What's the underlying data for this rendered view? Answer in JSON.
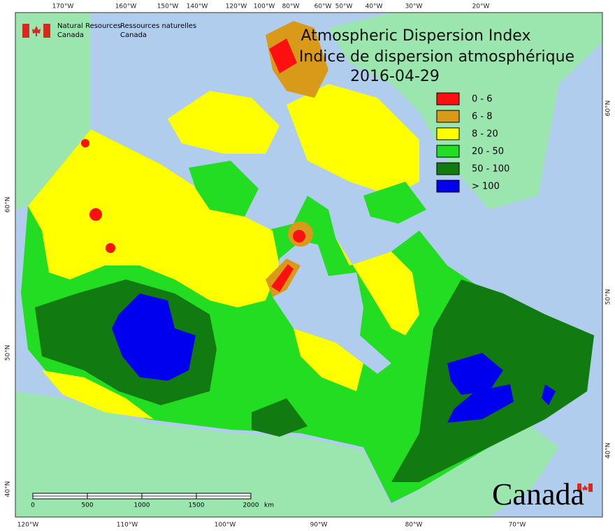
{
  "header": {
    "agency_en": [
      "Natural Resources",
      "Canada"
    ],
    "agency_fr": [
      "Ressources naturelles",
      "Canada"
    ]
  },
  "title": {
    "line1": "Atmospheric Dispersion Index",
    "line2": "Indice de dispersion atmosphérique",
    "date": "2016-04-29"
  },
  "legend": [
    {
      "label": "0 - 6",
      "color": "#ff1010"
    },
    {
      "label": "6 - 8",
      "color": "#d99a1a"
    },
    {
      "label": "8 - 20",
      "color": "#ffff00"
    },
    {
      "label": "20 - 50",
      "color": "#22dd22"
    },
    {
      "label": "50 - 100",
      "color": "#117a11"
    },
    {
      "label": "> 100",
      "color": "#0000ee"
    }
  ],
  "graticule": {
    "top": [
      "170°W",
      "160°W",
      "150°W",
      "140°W",
      "120°W",
      "100°W",
      "80°W",
      "60°W",
      "50°W",
      "40°W",
      "30°W",
      "20°W"
    ],
    "bottom": [
      "120°W",
      "110°W",
      "100°W",
      "90°W",
      "80°W",
      "70°W"
    ],
    "left": [
      "60°N",
      "50°N",
      "40°N"
    ],
    "right": [
      "60°N",
      "50°N",
      "40°N"
    ]
  },
  "scale_bar": {
    "labels": [
      "0",
      "500",
      "1000",
      "1500",
      "2000"
    ],
    "unit": "km"
  },
  "wordmark": "Canada"
}
